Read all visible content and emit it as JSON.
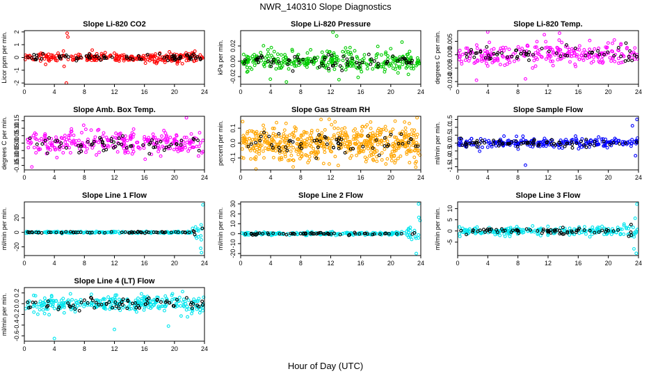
{
  "figure": {
    "title": "NWR_140310  Slope Diagnostics",
    "xlabel": "Hour of Day (UTC)"
  },
  "colors": {
    "secondary": "#000000",
    "axis": "#000000",
    "background": "#ffffff"
  },
  "chart_data": [
    {
      "type": "scatter",
      "title": "Slope Li-820 CO2",
      "ylabel": "Licor ppm per min.",
      "xlim": [
        0,
        24
      ],
      "xticks": [
        0,
        4,
        8,
        12,
        16,
        20,
        24
      ],
      "ylim": [
        -2.1,
        2.1
      ],
      "yticks": [
        -2,
        -1,
        0,
        1,
        2
      ],
      "ytick_labels": [
        "-2",
        "-1",
        "0",
        "1",
        "2"
      ],
      "color": "#ff0000",
      "spread": 0.35,
      "n_primary": 260,
      "n_secondary": 70,
      "outliers": [
        {
          "x": 5.7,
          "y": 1.9
        },
        {
          "x": 5.8,
          "y": 1.6
        },
        {
          "x": 5.6,
          "y": -2.0
        },
        {
          "x": 5.3,
          "y": -0.7
        }
      ]
    },
    {
      "type": "scatter",
      "title": "Slope Li-820 Pressure",
      "ylabel": "kPa per min.",
      "xlim": [
        0,
        24
      ],
      "xticks": [
        0,
        4,
        8,
        12,
        16,
        20,
        24
      ],
      "ylim": [
        -0.03,
        0.04
      ],
      "yticks": [
        -0.02,
        0,
        0.02
      ],
      "ytick_labels": [
        "-0.02",
        "0.00",
        "0.02"
      ],
      "color": "#00cc00",
      "spread": 0.012,
      "n_primary": 320,
      "n_secondary": 70,
      "outliers": [
        {
          "x": 12.3,
          "y": 0.038
        },
        {
          "x": 12.8,
          "y": 0.033
        },
        {
          "x": 13.1,
          "y": -0.024
        },
        {
          "x": 6.1,
          "y": -0.027
        },
        {
          "x": 21.5,
          "y": 0.025
        }
      ]
    },
    {
      "type": "scatter",
      "title": "Slope Li-820 Temp.",
      "ylabel": "degrees C per min.",
      "xlim": [
        0,
        24
      ],
      "xticks": [
        0,
        4,
        8,
        12,
        16,
        20,
        24
      ],
      "ylim": [
        -0.011,
        0.009
      ],
      "yticks": [
        -0.01,
        -0.005,
        0,
        0.005
      ],
      "ytick_labels": [
        "-0.010",
        "-0.005",
        "0.000",
        "0.005"
      ],
      "color": "#ff00ff",
      "spread": 0.004,
      "n_primary": 260,
      "n_secondary": 60,
      "outliers": [
        {
          "x": 4.0,
          "y": 0.0085
        },
        {
          "x": 9.0,
          "y": -0.009
        },
        {
          "x": 2.5,
          "y": -0.0095
        },
        {
          "x": 11.5,
          "y": 0.0075
        }
      ]
    },
    {
      "type": "scatter",
      "title": "Slope Amb. Box Temp.",
      "ylabel": "degrees C per min.",
      "xlim": [
        0,
        24
      ],
      "xticks": [
        0,
        4,
        8,
        12,
        16,
        20,
        24
      ],
      "ylim": [
        -0.18,
        0.18
      ],
      "yticks": [
        -0.15,
        -0.1,
        -0.05,
        0,
        0.05,
        0.1,
        0.15
      ],
      "ytick_labels": [
        "-0.15",
        "-0.10",
        "-0.05",
        "0.00",
        "0.05",
        "0.10",
        "0.15"
      ],
      "color": "#ff00ff",
      "spread": 0.075,
      "n_primary": 280,
      "n_secondary": 60,
      "outliers": [
        {
          "x": 1.0,
          "y": -0.16
        },
        {
          "x": 7.9,
          "y": 0.12
        },
        {
          "x": 21.6,
          "y": 0.17
        }
      ]
    },
    {
      "type": "scatter",
      "title": "Slope Gas Stream RH",
      "ylabel": "percent per min.",
      "xlim": [
        0,
        24
      ],
      "xticks": [
        0,
        4,
        8,
        12,
        16,
        20,
        24
      ],
      "ylim": [
        -0.18,
        0.18
      ],
      "yticks": [
        -0.1,
        0,
        0.1
      ],
      "ytick_labels": [
        "-0.1",
        "0.0",
        "0.1"
      ],
      "color": "#ffa500",
      "spread": 0.11,
      "n_primary": 560,
      "n_secondary": 60,
      "outliers": [
        {
          "x": 7.0,
          "y": -0.16
        },
        {
          "x": 13.0,
          "y": -0.15
        },
        {
          "x": 23.5,
          "y": 0.17
        }
      ]
    },
    {
      "type": "scatter",
      "title": "Slope Sample Flow",
      "ylabel": "ml/min per min.",
      "xlim": [
        0,
        24
      ],
      "xticks": [
        0,
        4,
        8,
        12,
        16,
        20,
        24
      ],
      "ylim": [
        -1.7,
        1.7
      ],
      "yticks": [
        -1.5,
        -1,
        -0.5,
        0,
        0.5,
        1,
        1.5
      ],
      "ytick_labels": [
        "-1.5",
        "-1.0",
        "-0.5",
        "0.0",
        "0.5",
        "1.0",
        "1.5"
      ],
      "color": "#0000ff",
      "spread": 0.28,
      "n_primary": 240,
      "n_secondary": 70,
      "outliers": [
        {
          "x": 9.0,
          "y": -1.4
        },
        {
          "x": 23.8,
          "y": 1.5
        },
        {
          "x": 23.6,
          "y": -0.8
        },
        {
          "x": 23.2,
          "y": 1.1
        }
      ]
    },
    {
      "type": "scatter",
      "title": "Slope Line 1 Flow",
      "ylabel": "ml/min per min.",
      "xlim": [
        0,
        24
      ],
      "xticks": [
        0,
        4,
        8,
        12,
        16,
        20,
        24
      ],
      "ylim": [
        -32,
        42
      ],
      "yticks": [
        -20,
        0,
        20
      ],
      "ytick_labels": [
        "-20",
        "0",
        "20"
      ],
      "color": "#00e5ee",
      "spread": 1.2,
      "n_primary": 200,
      "n_secondary": 60,
      "endburst": 22,
      "endburst_spread": 30,
      "outliers": [
        {
          "x": 23.8,
          "y": 38
        },
        {
          "x": 23.6,
          "y": -28
        },
        {
          "x": 23.5,
          "y": -22
        }
      ]
    },
    {
      "type": "scatter",
      "title": "Slope Line 2 Flow",
      "ylabel": "ml/min per min.",
      "xlim": [
        0,
        24
      ],
      "xticks": [
        0,
        4,
        8,
        12,
        16,
        20,
        24
      ],
      "ylim": [
        -22,
        32
      ],
      "yticks": [
        -20,
        -10,
        0,
        10,
        20,
        30
      ],
      "ytick_labels": [
        "-20",
        "-10",
        "0",
        "10",
        "20",
        "30"
      ],
      "color": "#00e5ee",
      "spread": 1.5,
      "n_primary": 200,
      "n_secondary": 60,
      "endburst": 21.5,
      "endburst_spread": 22,
      "outliers": [
        {
          "x": 23.7,
          "y": 30
        },
        {
          "x": 23.4,
          "y": -20
        }
      ]
    },
    {
      "type": "scatter",
      "title": "Slope Line 3 Flow",
      "ylabel": "ml/min per min.",
      "xlim": [
        0,
        24
      ],
      "xticks": [
        0,
        4,
        8,
        12,
        16,
        20,
        24
      ],
      "ylim": [
        -11,
        13
      ],
      "yticks": [
        -5,
        0,
        5,
        10
      ],
      "ytick_labels": [
        "-5",
        "0",
        "5",
        "10"
      ],
      "color": "#00e5ee",
      "spread": 1.6,
      "n_primary": 240,
      "n_secondary": 70,
      "endburst": 21,
      "endburst_spread": 8,
      "outliers": [
        {
          "x": 23.8,
          "y": 12
        },
        {
          "x": 23.7,
          "y": -10
        },
        {
          "x": 23.4,
          "y": -8
        }
      ]
    },
    {
      "type": "scatter",
      "title": "Slope Line 4 (LT) Flow",
      "ylabel": "ml/min per min.",
      "xlim": [
        0,
        24
      ],
      "xticks": [
        0,
        4,
        8,
        12,
        16,
        20,
        24
      ],
      "ylim": [
        -0.7,
        0.3
      ],
      "yticks": [
        -0.6,
        -0.4,
        -0.2,
        0,
        0.2
      ],
      "ytick_labels": [
        "-0.6",
        "-0.4",
        "-0.2",
        "0.0",
        "0.2"
      ],
      "color": "#00e5ee",
      "spread": 0.14,
      "n_primary": 300,
      "n_secondary": 70,
      "outliers": [
        {
          "x": 4.0,
          "y": -0.65
        },
        {
          "x": 12.0,
          "y": -0.48
        },
        {
          "x": 19.2,
          "y": -0.42
        }
      ]
    }
  ]
}
